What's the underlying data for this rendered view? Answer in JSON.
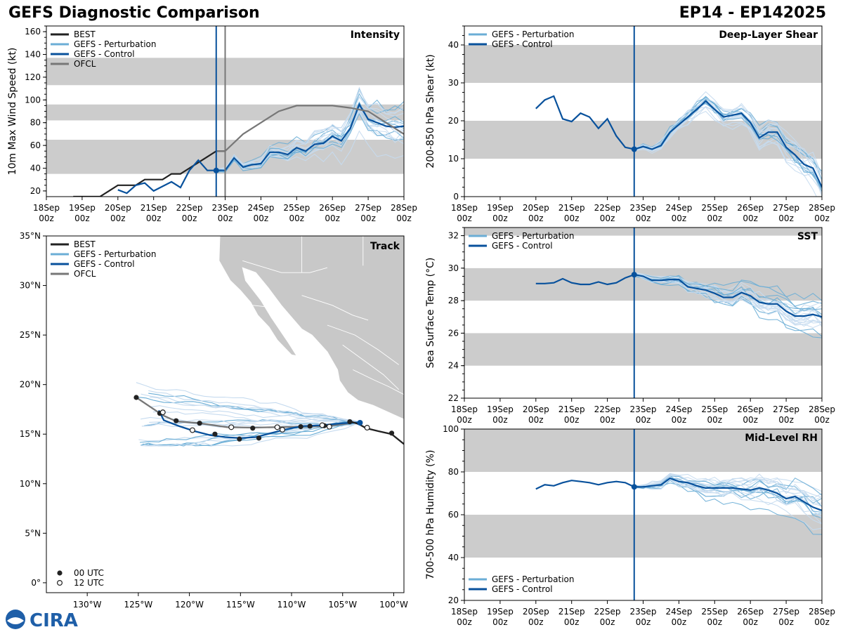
{
  "header": {
    "title": "GEFS Diagnostic Comparison",
    "storm_id": "EP14 - EP142025"
  },
  "logo": {
    "text": "CIRA"
  },
  "colors": {
    "best": "#222222",
    "pert": "#6baed6",
    "pert_light": "#c6dbef",
    "control": "#08519c",
    "ofcl": "#777777",
    "band": "#cccccc",
    "land": "#c8c8c8"
  },
  "time_axis": {
    "ticks": [
      "18Sep\n00z",
      "19Sep\n00z",
      "20Sep\n00z",
      "21Sep\n00z",
      "22Sep\n00z",
      "23Sep\n00z",
      "24Sep\n00z",
      "25Sep\n00z",
      "26Sep\n00z",
      "27Sep\n00z",
      "28Sep\n00z"
    ],
    "now_day": 4.75
  },
  "chart_data": [
    {
      "id": "intensity",
      "type": "line",
      "title": "Intensity",
      "ylabel": "10m Max Wind Speed (kt)",
      "ylim": [
        15,
        165
      ],
      "yticks": [
        20,
        40,
        60,
        80,
        100,
        120,
        140,
        160
      ],
      "bands": [
        [
          35,
          65
        ],
        [
          82,
          96
        ],
        [
          113,
          137
        ]
      ],
      "ofcl_line_day": 5.0,
      "legend": [
        "BEST",
        "GEFS - Perturbation",
        "GEFS - Control",
        "OFCL"
      ],
      "series": [
        {
          "name": "BEST",
          "x": [
            0.75,
            1.0,
            1.25,
            1.5,
            1.75,
            2.0,
            2.25,
            2.5,
            2.75,
            3.0,
            3.25,
            3.5,
            3.75,
            4.0,
            4.25,
            4.5,
            4.75,
            5.0
          ],
          "y": [
            15,
            15,
            15,
            15,
            20,
            25,
            25,
            25,
            30,
            30,
            30,
            35,
            35,
            40,
            45,
            50,
            55,
            55
          ]
        },
        {
          "name": "GEFS - Control",
          "x": [
            2.0,
            2.25,
            2.5,
            2.75,
            3.0,
            3.25,
            3.5,
            3.75,
            4.0,
            4.25,
            4.5,
            4.75,
            5.0,
            5.25,
            5.5,
            5.75,
            6.0,
            6.25,
            6.5,
            6.75,
            7.0,
            7.25,
            7.5,
            7.75,
            8.0,
            8.25,
            8.5,
            8.75,
            9.0,
            9.25,
            9.5,
            9.75,
            10.0
          ],
          "y": [
            21,
            18,
            25,
            27,
            20,
            24,
            28,
            23,
            38,
            47,
            38,
            38,
            38,
            49,
            41,
            43,
            44,
            54,
            54,
            52,
            58,
            55,
            61,
            62,
            68,
            64,
            75,
            96,
            83,
            80,
            77,
            76,
            77
          ]
        },
        {
          "name": "OFCL",
          "x": [
            4.75,
            5.0,
            5.5,
            6.0,
            6.5,
            7.0,
            7.5,
            8.0,
            8.5,
            9.0,
            9.5,
            10.0
          ],
          "y": [
            55,
            55,
            70,
            80,
            90,
            95,
            95,
            95,
            93,
            90,
            80,
            70
          ]
        }
      ]
    },
    {
      "id": "shear",
      "type": "line",
      "title": "Deep-Layer Shear",
      "ylabel": "200-850 hPa Shear (kt)",
      "ylim": [
        0,
        45
      ],
      "yticks": [
        0,
        10,
        20,
        30,
        40
      ],
      "bands": [
        [
          10,
          20
        ],
        [
          30,
          40
        ]
      ],
      "legend": [
        "GEFS - Perturbation",
        "GEFS - Control"
      ],
      "series": [
        {
          "name": "GEFS - Control",
          "x": [
            2.0,
            2.25,
            2.5,
            2.75,
            3.0,
            3.25,
            3.5,
            3.75,
            4.0,
            4.25,
            4.5,
            4.75,
            5.0,
            5.25,
            5.5,
            5.75,
            6.0,
            6.25,
            6.5,
            6.75,
            7.0,
            7.25,
            7.5,
            7.75,
            8.0,
            8.25,
            8.5,
            8.75,
            9.0,
            9.25,
            9.5,
            9.75,
            10.0
          ],
          "y": [
            23.2,
            25.5,
            26.5,
            20.5,
            19.8,
            22,
            21,
            18,
            20.5,
            16,
            13,
            12.5,
            13.2,
            12.5,
            13.5,
            17,
            19,
            21,
            23,
            25.2,
            23,
            21,
            21.5,
            22,
            19.5,
            15.5,
            17,
            17,
            13,
            11,
            8.5,
            7.5,
            2.5
          ]
        }
      ]
    },
    {
      "id": "sst",
      "type": "line",
      "title": "SST",
      "ylabel": "Sea Surface Temp (°C)",
      "ylim": [
        22,
        32.5
      ],
      "yticks": [
        22,
        24,
        26,
        28,
        30,
        32
      ],
      "bands": [
        [
          24,
          26
        ],
        [
          28,
          30
        ],
        [
          32,
          33
        ]
      ],
      "legend": [
        "GEFS - Perturbation",
        "GEFS - Control"
      ],
      "series": [
        {
          "name": "GEFS - Control",
          "x": [
            2.0,
            2.25,
            2.5,
            2.75,
            3.0,
            3.25,
            3.5,
            3.75,
            4.0,
            4.25,
            4.5,
            4.75,
            5.0,
            5.25,
            5.5,
            5.75,
            6.0,
            6.25,
            6.5,
            6.75,
            7.0,
            7.25,
            7.5,
            7.75,
            8.0,
            8.25,
            8.5,
            8.75,
            9.0,
            9.25,
            9.5,
            9.75,
            10.0
          ],
          "y": [
            29.05,
            29.05,
            29.1,
            29.35,
            29.1,
            29.0,
            29.0,
            29.15,
            29.0,
            29.1,
            29.4,
            29.6,
            29.5,
            29.25,
            29.25,
            29.3,
            29.3,
            28.85,
            28.75,
            28.65,
            28.45,
            28.2,
            28.2,
            28.5,
            28.3,
            27.9,
            27.8,
            27.8,
            27.35,
            27.05,
            27.05,
            27.15,
            27.0
          ]
        }
      ]
    },
    {
      "id": "rh",
      "type": "line",
      "title": "Mid-Level RH",
      "ylabel": "700-500 hPa Humidity (%)",
      "ylim": [
        20,
        100
      ],
      "yticks": [
        20,
        40,
        60,
        80,
        100
      ],
      "bands": [
        [
          40,
          60
        ],
        [
          80,
          100
        ]
      ],
      "legend": [
        "GEFS - Perturbation",
        "GEFS - Control"
      ],
      "series": [
        {
          "name": "GEFS - Control",
          "x": [
            2.0,
            2.25,
            2.5,
            2.75,
            3.0,
            3.25,
            3.5,
            3.75,
            4.0,
            4.25,
            4.5,
            4.75,
            5.0,
            5.25,
            5.5,
            5.75,
            6.0,
            6.25,
            6.5,
            6.75,
            7.0,
            7.25,
            7.5,
            7.75,
            8.0,
            8.25,
            8.5,
            8.75,
            9.0,
            9.25,
            9.5,
            9.75,
            10.0
          ],
          "y": [
            72,
            74,
            73.5,
            75,
            76,
            75.5,
            75,
            74,
            75,
            75.5,
            75,
            73,
            73,
            73.5,
            74,
            77,
            75.5,
            75,
            73.5,
            72.5,
            72.5,
            72.5,
            72.5,
            72,
            71.5,
            72.5,
            71.5,
            70,
            67.5,
            68.5,
            66,
            63.5,
            62
          ]
        }
      ]
    },
    {
      "id": "track",
      "type": "map",
      "title": "Track",
      "lon_range": [
        -134,
        -99
      ],
      "lat_range": [
        -1,
        35
      ],
      "xticks": [
        "130°W",
        "125°W",
        "120°W",
        "115°W",
        "110°W",
        "105°W",
        "100°W"
      ],
      "xtick_values": [
        -130,
        -125,
        -120,
        -115,
        -110,
        -105,
        -100
      ],
      "yticks": [
        "0°",
        "5°N",
        "10°N",
        "15°N",
        "20°N",
        "25°N",
        "30°N",
        "35°N"
      ],
      "ytick_values": [
        0,
        5,
        10,
        15,
        20,
        25,
        30,
        35
      ],
      "legend": [
        "BEST",
        "GEFS - Perturbation",
        "GEFS - Control",
        "OFCL"
      ],
      "marker_legend": [
        "00 UTC",
        "12 UTC"
      ],
      "best_track": {
        "lon": [
          -99,
          -100.2,
          -101.5,
          -102.7,
          -103.4,
          -104.3
        ],
        "lat": [
          14,
          15.0,
          15.3,
          15.6,
          16.0,
          16.3
        ]
      },
      "control_track": {
        "lon": [
          -103.2,
          -105,
          -107,
          -109,
          -110.5,
          -112,
          -113.5,
          -115,
          -116.5,
          -118,
          -119.5,
          -121,
          -122.5,
          -123
        ],
        "lat": [
          16.2,
          16.1,
          15.9,
          15.8,
          15.5,
          15.1,
          14.7,
          14.6,
          14.7,
          14.9,
          15.3,
          15.8,
          16.4,
          17.4
        ]
      },
      "ofcl_track": {
        "lon": [
          -104.3,
          -106.5,
          -109,
          -111.5,
          -113.8,
          -116.3,
          -119,
          -121.3,
          -122.6,
          -125.2
        ],
        "lat": [
          16.1,
          15.8,
          15.75,
          15.7,
          15.65,
          15.7,
          16.1,
          16.3,
          16.9,
          18.7
        ]
      },
      "markers_00": {
        "lon": [
          -100.2,
          -104.3,
          -106.8,
          -109.1,
          -113.2,
          -117.5,
          -121.3,
          -122.9,
          -113.8,
          -119,
          -125.2,
          -115.1,
          -108.2
        ],
        "lat": [
          15.1,
          16.25,
          15.85,
          15.75,
          14.6,
          15.0,
          16.35,
          17.1,
          15.6,
          16.1,
          18.7,
          14.5,
          15.8
        ]
      },
      "markers_12": {
        "lon": [
          -102.6,
          -106.3,
          -107,
          -111.4,
          -115.9,
          -119.7,
          -122.6,
          -110.9
        ],
        "lat": [
          15.65,
          15.75,
          15.9,
          15.7,
          15.7,
          15.4,
          17.2,
          15.45
        ]
      }
    }
  ]
}
